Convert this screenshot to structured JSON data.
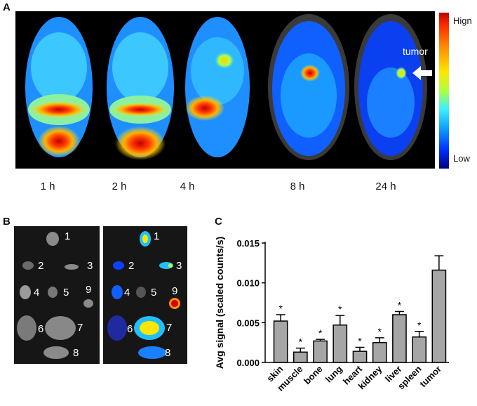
{
  "panels": {
    "a": "A",
    "b": "B",
    "c": "C"
  },
  "panel_a": {
    "timepoints": [
      "1 h",
      "2 h",
      "4 h",
      "8 h",
      "24 h"
    ],
    "scale_high": "Hign",
    "scale_low": "Low",
    "annotation": "tumor"
  },
  "panel_b": {
    "numbers": [
      "1",
      "2",
      "3",
      "4",
      "5",
      "9",
      "6",
      "7",
      "8"
    ]
  },
  "chart_data": {
    "type": "bar",
    "categories": [
      "skin",
      "muscle",
      "bone",
      "lung",
      "heart",
      "kidney",
      "liver",
      "spleen",
      "tumor"
    ],
    "values": [
      0.0052,
      0.0013,
      0.0027,
      0.0047,
      0.0014,
      0.0025,
      0.006,
      0.0032,
      0.0116
    ],
    "errors": [
      0.0008,
      0.0005,
      0.0002,
      0.0012,
      0.0005,
      0.0006,
      0.0004,
      0.0007,
      0.0018
    ],
    "significance": [
      "*",
      "*",
      "*",
      "*",
      "*",
      "*",
      "*",
      "*",
      ""
    ],
    "ylabel": "Avg signal (scaled counts/s)",
    "ylim": [
      0,
      0.015
    ],
    "yticks": [
      "0.000",
      "0.005",
      "0.010",
      "0.015"
    ],
    "bar_color": "#a6a6a6"
  }
}
